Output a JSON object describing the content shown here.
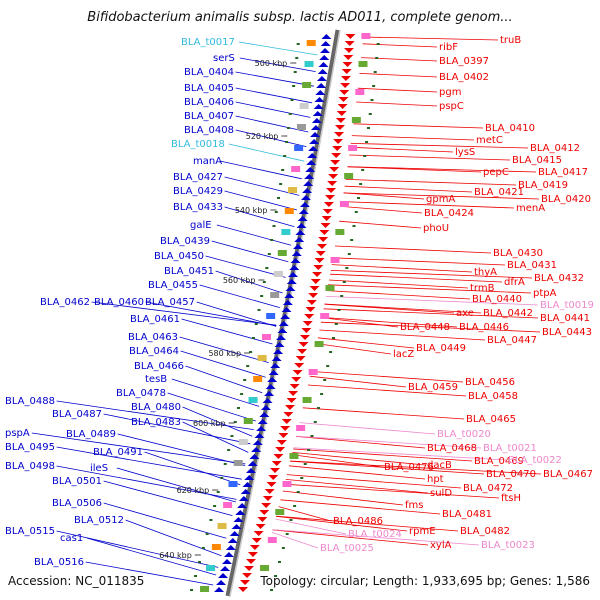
{
  "title": "Bifidobacterium animalis subsp. lactis AD011, complete genom...",
  "footer": {
    "accession": "Accession: NC_011835",
    "topology": "Topology: circular; Length: 1,933,695 bp; Genes: 1,586"
  },
  "colors": {
    "forward": "#0000cc",
    "reverse": "#ee0000",
    "trna": "#33bbdd",
    "trna_rev": "#ee88cc",
    "tick": "#226622",
    "backbone": "#888888"
  },
  "ticks": [
    "500 kbp",
    "520 kbp",
    "540 kbp",
    "560 kbp",
    "580 kbp",
    "600 kbp",
    "620 kbp",
    "640 kbp"
  ],
  "left_labels": [
    {
      "text": "BLA_t0017",
      "kind": "trna"
    },
    {
      "text": "serS",
      "kind": "forward"
    },
    {
      "text": "BLA_0404",
      "kind": "forward"
    },
    {
      "text": "BLA_0405",
      "kind": "forward"
    },
    {
      "text": "BLA_0406",
      "kind": "forward"
    },
    {
      "text": "BLA_0407",
      "kind": "forward"
    },
    {
      "text": "BLA_0408",
      "kind": "forward"
    },
    {
      "text": "BLA_t0018",
      "kind": "trna"
    },
    {
      "text": "manA",
      "kind": "forward"
    },
    {
      "text": "BLA_0427",
      "kind": "forward"
    },
    {
      "text": "BLA_0429",
      "kind": "forward"
    },
    {
      "text": "BLA_0433",
      "kind": "forward"
    },
    {
      "text": "galE",
      "kind": "forward"
    },
    {
      "text": "BLA_0439",
      "kind": "forward"
    },
    {
      "text": "BLA_0450",
      "kind": "forward"
    },
    {
      "text": "BLA_0451",
      "kind": "forward"
    },
    {
      "text": "BLA_0455",
      "kind": "forward"
    },
    {
      "text": "BLA_0462",
      "kind": "forward"
    },
    {
      "text": "BLA_0460",
      "kind": "forward"
    },
    {
      "text": "BLA_0457",
      "kind": "forward"
    },
    {
      "text": "BLA_0461",
      "kind": "forward"
    },
    {
      "text": "BLA_0463",
      "kind": "forward"
    },
    {
      "text": "BLA_0464",
      "kind": "forward"
    },
    {
      "text": "BLA_0466",
      "kind": "forward"
    },
    {
      "text": "tesB",
      "kind": "forward"
    },
    {
      "text": "BLA_0478",
      "kind": "forward"
    },
    {
      "text": "BLA_0488",
      "kind": "forward"
    },
    {
      "text": "BLA_0480",
      "kind": "forward"
    },
    {
      "text": "BLA_0487",
      "kind": "forward"
    },
    {
      "text": "BLA_0483",
      "kind": "forward"
    },
    {
      "text": "pspA",
      "kind": "forward"
    },
    {
      "text": "BLA_0489",
      "kind": "forward"
    },
    {
      "text": "BLA_0495",
      "kind": "forward"
    },
    {
      "text": "BLA_0491",
      "kind": "forward"
    },
    {
      "text": "BLA_0498",
      "kind": "forward"
    },
    {
      "text": "ileS",
      "kind": "forward"
    },
    {
      "text": "BLA_0501",
      "kind": "forward"
    },
    {
      "text": "BLA_0506",
      "kind": "forward"
    },
    {
      "text": "BLA_0512",
      "kind": "forward"
    },
    {
      "text": "BLA_0515",
      "kind": "forward"
    },
    {
      "text": "cas1",
      "kind": "forward"
    },
    {
      "text": "BLA_0516",
      "kind": "forward"
    }
  ],
  "right_labels": [
    {
      "text": "truB",
      "kind": "reverse"
    },
    {
      "text": "ribF",
      "kind": "reverse"
    },
    {
      "text": "BLA_0397",
      "kind": "reverse"
    },
    {
      "text": "BLA_0402",
      "kind": "reverse"
    },
    {
      "text": "pgm",
      "kind": "reverse"
    },
    {
      "text": "pspC",
      "kind": "reverse"
    },
    {
      "text": "BLA_0410",
      "kind": "reverse"
    },
    {
      "text": "metC",
      "kind": "reverse"
    },
    {
      "text": "BLA_0412",
      "kind": "reverse"
    },
    {
      "text": "lysS",
      "kind": "reverse"
    },
    {
      "text": "BLA_0415",
      "kind": "reverse"
    },
    {
      "text": "pepC",
      "kind": "reverse"
    },
    {
      "text": "BLA_0417",
      "kind": "reverse"
    },
    {
      "text": "BLA_0419",
      "kind": "reverse"
    },
    {
      "text": "BLA_0421",
      "kind": "reverse"
    },
    {
      "text": "BLA_0420",
      "kind": "reverse"
    },
    {
      "text": "gpmA",
      "kind": "reverse"
    },
    {
      "text": "menA",
      "kind": "reverse"
    },
    {
      "text": "BLA_0424",
      "kind": "reverse"
    },
    {
      "text": "phoU",
      "kind": "reverse"
    },
    {
      "text": "BLA_0430",
      "kind": "reverse"
    },
    {
      "text": "BLA_0431",
      "kind": "reverse"
    },
    {
      "text": "thyA",
      "kind": "reverse"
    },
    {
      "text": "BLA_0432",
      "kind": "reverse"
    },
    {
      "text": "dfrA",
      "kind": "reverse"
    },
    {
      "text": "trmB",
      "kind": "reverse"
    },
    {
      "text": "ptpA",
      "kind": "reverse"
    },
    {
      "text": "BLA_0440",
      "kind": "reverse"
    },
    {
      "text": "BLA_t0019",
      "kind": "trna_rev"
    },
    {
      "text": "axe",
      "kind": "reverse"
    },
    {
      "text": "BLA_0442",
      "kind": "reverse"
    },
    {
      "text": "BLA_0441",
      "kind": "reverse"
    },
    {
      "text": "BLA_0448",
      "kind": "reverse"
    },
    {
      "text": "BLA_0446",
      "kind": "reverse"
    },
    {
      "text": "BLA_0443",
      "kind": "reverse"
    },
    {
      "text": "BLA_0447",
      "kind": "reverse"
    },
    {
      "text": "BLA_0449",
      "kind": "reverse"
    },
    {
      "text": "lacZ",
      "kind": "reverse"
    },
    {
      "text": "BLA_0456",
      "kind": "reverse"
    },
    {
      "text": "BLA_0459",
      "kind": "reverse"
    },
    {
      "text": "BLA_0458",
      "kind": "reverse"
    },
    {
      "text": "BLA_0465",
      "kind": "reverse"
    },
    {
      "text": "BLA_t0020",
      "kind": "trna_rev"
    },
    {
      "text": "BLA_0468",
      "kind": "reverse"
    },
    {
      "text": "BLA_t0021",
      "kind": "trna_rev"
    },
    {
      "text": "BLA_0469",
      "kind": "reverse"
    },
    {
      "text": "BLA_t0022",
      "kind": "trna_rev"
    },
    {
      "text": "BLA_0476",
      "kind": "reverse"
    },
    {
      "text": "dacB",
      "kind": "reverse"
    },
    {
      "text": "BLA_0470",
      "kind": "reverse"
    },
    {
      "text": "BLA_0467",
      "kind": "reverse"
    },
    {
      "text": "hpt",
      "kind": "reverse"
    },
    {
      "text": "BLA_0472",
      "kind": "reverse"
    },
    {
      "text": "sulD",
      "kind": "reverse"
    },
    {
      "text": "ftsH",
      "kind": "reverse"
    },
    {
      "text": "fms",
      "kind": "reverse"
    },
    {
      "text": "BLA_0481",
      "kind": "reverse"
    },
    {
      "text": "BLA_0486",
      "kind": "reverse"
    },
    {
      "text": "rpmE",
      "kind": "reverse"
    },
    {
      "text": "BLA_0482",
      "kind": "reverse"
    },
    {
      "text": "BLA_t0024",
      "kind": "trna_rev"
    },
    {
      "text": "xylA",
      "kind": "reverse"
    },
    {
      "text": "BLA_t0023",
      "kind": "trna_rev"
    },
    {
      "text": "BLA_t0025",
      "kind": "trna_rev"
    }
  ]
}
